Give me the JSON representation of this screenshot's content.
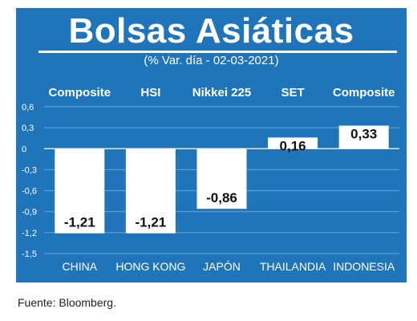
{
  "chart_data": {
    "type": "bar",
    "title": "Bolsas Asiáticas",
    "subtitle": "(% Var. día - 02-03-2021)",
    "categories": [
      "CHINA",
      "HONG KONG",
      "JAPÓN",
      "THAILANDIA",
      "INDONESIA"
    ],
    "index_names": [
      "Composite",
      "HSI",
      "Nikkei 225",
      "SET",
      "Composite"
    ],
    "values": [
      -1.21,
      -1.21,
      -0.86,
      0.16,
      0.33
    ],
    "value_labels": [
      "-1,21",
      "-1,21",
      "-0,86",
      "0,16",
      "0,33"
    ],
    "yticks": [
      0.6,
      0.3,
      0,
      -0.3,
      -0.6,
      -0.9,
      -1.2,
      -1.5
    ],
    "ytick_labels": [
      "0,6",
      "0,3",
      "0",
      "-0,3",
      "-0,6",
      "-0,9",
      "-1,2",
      "-1,5"
    ],
    "ylim": [
      -1.5,
      0.6
    ],
    "xlabel": "",
    "ylabel": "",
    "grid": true,
    "bar_color": "#ffffff",
    "background_color": "#1f74ba",
    "source": "Fuente: Bloomberg."
  }
}
